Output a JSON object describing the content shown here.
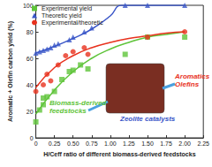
{
  "chart_data": {
    "type": "scatter",
    "x_label": "H/Ceff ratio of different biomass-derived feedstocks",
    "y_label": "Aromatic + Olefin carbon yield (%)",
    "xlim": [
      0,
      2.25
    ],
    "xticks": [
      0,
      0.25,
      {
        "value": 0.5,
        "label": "0.50"
      },
      0.75,
      {
        "value": 1,
        "label": "1.00"
      },
      1.25,
      {
        "value": 1.5,
        "label": "1.50"
      },
      1.75,
      {
        "value": 2,
        "label": "2.00"
      },
      2.25
    ],
    "ylim": [
      0,
      100
    ],
    "yticks": [
      0,
      20,
      40,
      60,
      80,
      100
    ],
    "grid": false,
    "legend": "top-left",
    "series": [
      {
        "name": "Experimental yield",
        "color": "#5fc43a",
        "marker": "square",
        "x": [
          0.0,
          0.05,
          0.1,
          0.1,
          0.15,
          0.25,
          0.35,
          0.45,
          0.5,
          0.6,
          0.7,
          1.2,
          1.5,
          2.0
        ],
        "values": [
          12,
          21,
          25,
          30,
          31,
          35,
          44,
          50,
          51,
          55,
          52,
          63,
          76,
          76
        ],
        "fit": {
          "x": [
            0,
            0.25,
            0.5,
            0.75,
            1.0,
            1.25,
            1.5,
            1.75,
            2.0
          ],
          "values": [
            18,
            36,
            50,
            60,
            67,
            72,
            76,
            78,
            80
          ]
        }
      },
      {
        "name": "Theoretic yield",
        "color": "#3a56c8",
        "marker": "triangle",
        "x": [
          0.0,
          0.05,
          0.1,
          0.15,
          0.2,
          0.25,
          0.3,
          0.45,
          0.5,
          0.65,
          0.75,
          1.2,
          1.5,
          2.0
        ],
        "values": [
          64,
          65,
          66,
          67,
          68,
          70,
          71,
          74,
          76,
          80,
          83,
          100,
          100,
          100
        ],
        "fit": {
          "x": [
            0,
            0.25,
            0.5,
            0.75,
            1.0,
            1.15,
            1.5,
            2.0
          ],
          "values": [
            64,
            69,
            75,
            82,
            92,
            100,
            100,
            100
          ]
        }
      },
      {
        "name": "Experimental/theoretic",
        "color": "#e8321e",
        "marker": "circle",
        "x": [
          0.0,
          0.1,
          0.15,
          0.2,
          0.3,
          0.4,
          0.5,
          0.65,
          0.7,
          1.5,
          2.0
        ],
        "values": [
          35,
          40,
          48,
          43,
          55,
          62,
          65,
          68,
          63,
          76,
          80
        ],
        "fit": {
          "x": [
            0,
            0.25,
            0.5,
            0.75,
            1.0,
            1.25,
            1.5,
            1.75,
            2.0
          ],
          "values": [
            38,
            53,
            62,
            68,
            72,
            75,
            77,
            79,
            80
          ]
        }
      }
    ],
    "annotations": [
      {
        "text": "Aromatics\nOlefins",
        "color": "#e8321e"
      },
      {
        "text": "Biomass-derived\nfeedstocks",
        "color": "#5fc43a"
      },
      {
        "text": "Zeolite catalysts",
        "color": "#3a56c8"
      }
    ]
  }
}
